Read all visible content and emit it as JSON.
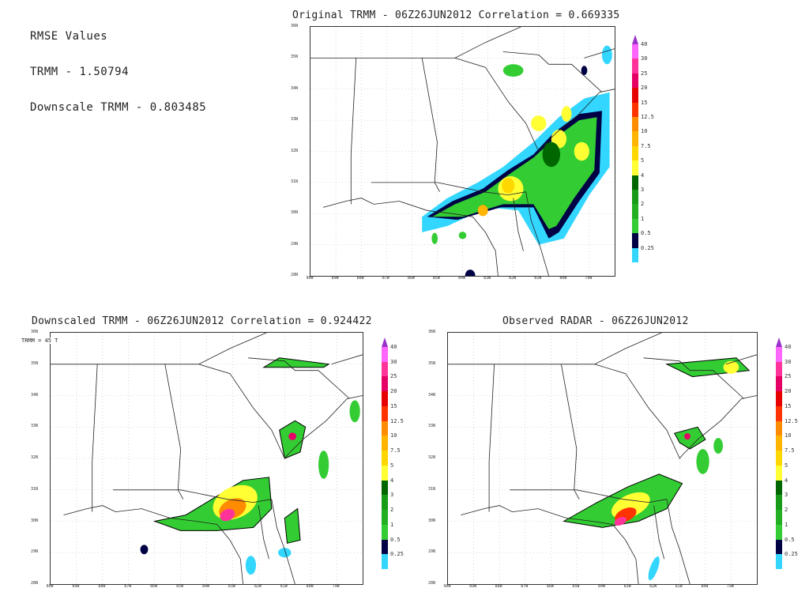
{
  "rmse": {
    "title": "RMSE Values",
    "trmm": "TRMM  -  1.50794",
    "downscale": "Downscale TRMM  -  0.803485"
  },
  "panels": [
    {
      "title": "Original TRMM  -  06Z26JUN2012  Correlation  =  0.669335"
    },
    {
      "title": "Downscaled TRMM  -  06Z26JUN2012  Correlation  =  0.924422",
      "overlay": "TRMM  =  45  T"
    },
    {
      "title": "Observed RADAR  -  06Z26JUN2012"
    }
  ],
  "map_axes": {
    "lat_labels": [
      "36N",
      "35N",
      "34N",
      "33N",
      "32N",
      "31N",
      "30N",
      "29N",
      "28N"
    ],
    "lon_labels": [
      "90W",
      "89W",
      "88W",
      "87W",
      "86W",
      "85W",
      "84W",
      "83W",
      "82W",
      "81W",
      "80W",
      "79W"
    ]
  },
  "colorbar": {
    "levels": [
      "40",
      "30",
      "25",
      "20",
      "15",
      "12.5",
      "10",
      "7.5",
      "5",
      "4",
      "3",
      "2",
      "1",
      "0.5",
      "0.25"
    ],
    "colors": [
      "#ff66ff",
      "#ff3399",
      "#e60066",
      "#e60000",
      "#ff3300",
      "#ff8c00",
      "#ffb400",
      "#ffd700",
      "#ffff33",
      "#006600",
      "#189b18",
      "#22b022",
      "#33cc33",
      "#000044",
      "#33d6ff"
    ],
    "top_color": "#9933cc"
  }
}
